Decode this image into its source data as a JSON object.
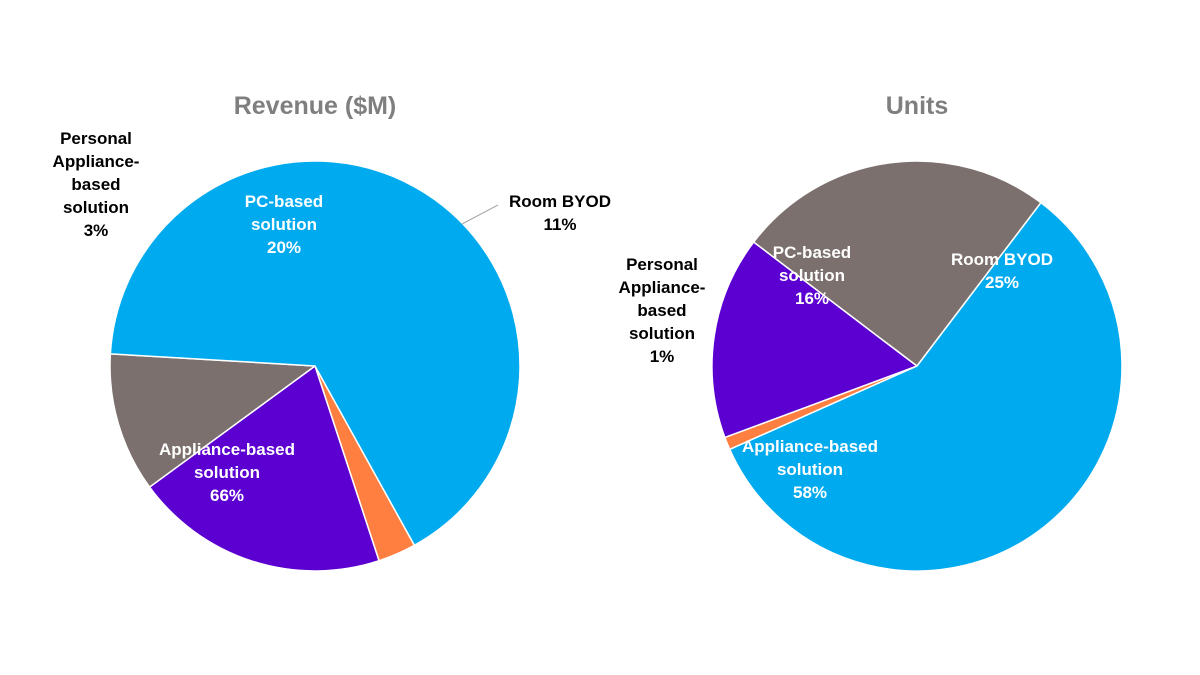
{
  "chart_data": [
    {
      "type": "pie",
      "title": "Revenue ($M)",
      "slices": [
        {
          "label": "Personal Appliance-based solution",
          "value": 3,
          "display": "3%",
          "color": "#ff7f41",
          "label_lines": [
            "Personal",
            "Appliance-",
            "based",
            "solution",
            "3%"
          ]
        },
        {
          "label": "PC-based solution",
          "value": 20,
          "display": "20%",
          "color": "#5b00d1",
          "label_lines": [
            "PC-based",
            "solution",
            "20%"
          ]
        },
        {
          "label": "Room BYOD",
          "value": 11,
          "display": "11%",
          "color": "#7b706d",
          "label_lines": [
            "Room BYOD",
            "11%"
          ]
        },
        {
          "label": "Appliance-based solution",
          "value": 66,
          "display": "66%",
          "color": "#00aaee",
          "label_lines": [
            "Appliance-based",
            "solution",
            "66%"
          ]
        }
      ]
    },
    {
      "type": "pie",
      "title": "Units",
      "slices": [
        {
          "label": "Personal Appliance-based solution",
          "value": 1,
          "display": "1%",
          "color": "#ff7f41",
          "label_lines": [
            "Personal",
            "Appliance-",
            "based",
            "solution",
            "1%"
          ]
        },
        {
          "label": "PC-based solution",
          "value": 16,
          "display": "16%",
          "color": "#5b00d1",
          "label_lines": [
            "PC-based",
            "solution",
            "16%"
          ]
        },
        {
          "label": "Room BYOD",
          "value": 25,
          "display": "25%",
          "color": "#7b706d",
          "label_lines": [
            "Room BYOD",
            "25%"
          ]
        },
        {
          "label": "Appliance-based solution",
          "value": 58,
          "display": "58%",
          "color": "#00aaee",
          "label_lines": [
            "Appliance-based",
            "solution",
            "58%"
          ]
        }
      ]
    }
  ]
}
